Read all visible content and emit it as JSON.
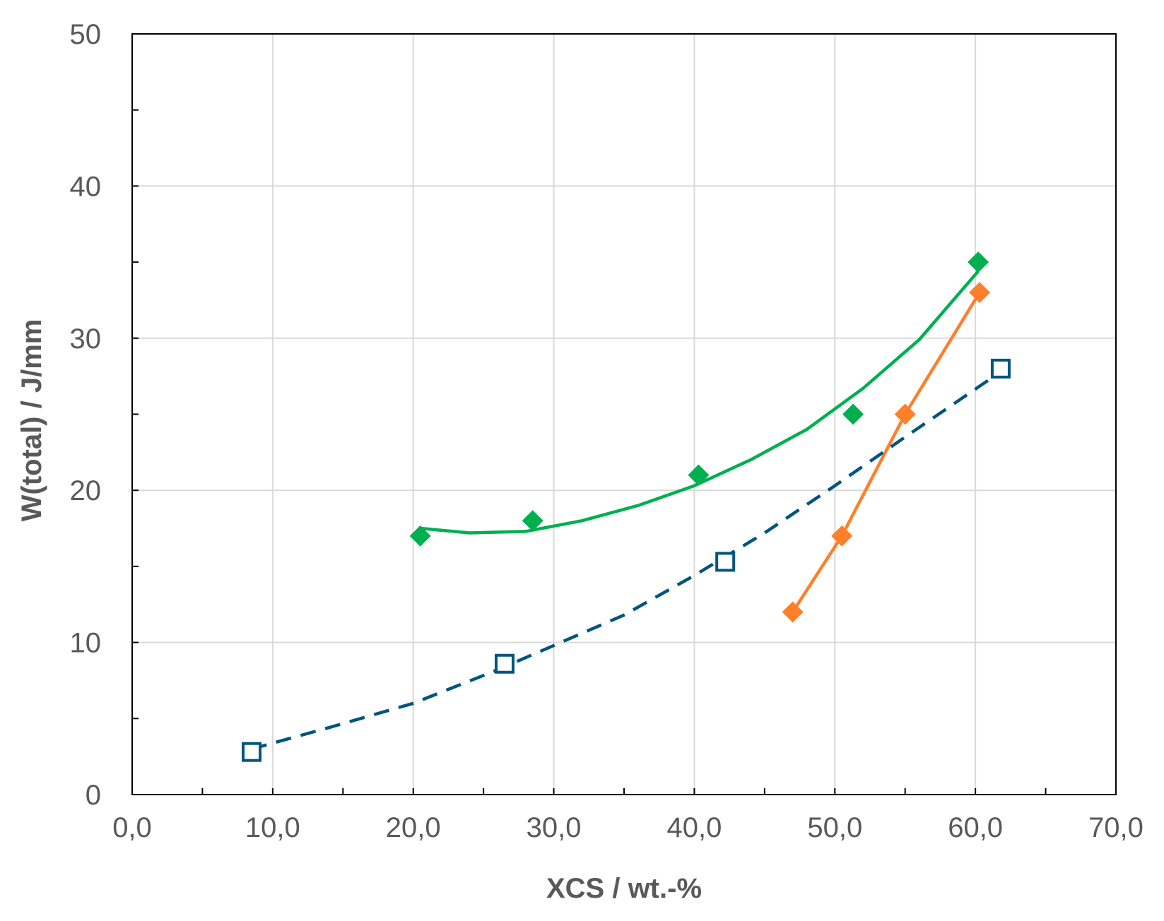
{
  "chart_data": {
    "type": "scatter",
    "title": "",
    "xlabel": "XCS / wt.-%",
    "ylabel": "W(total) / J/mm",
    "xlim": [
      0,
      70
    ],
    "ylim": [
      0,
      50
    ],
    "x_ticks": [
      "0,0",
      "10,0",
      "20,0",
      "30,0",
      "40,0",
      "50,0",
      "60,0",
      "70,0"
    ],
    "y_ticks": [
      "0",
      "10",
      "20",
      "30",
      "40",
      "50"
    ],
    "grid": true,
    "legend": "none",
    "series": [
      {
        "color": "#00b050",
        "marker": "filled-diamond",
        "points": [
          {
            "x": 20.5,
            "y": 17
          },
          {
            "x": 28.5,
            "y": 18
          },
          {
            "x": 40.3,
            "y": 21
          },
          {
            "x": 51.3,
            "y": 25
          },
          {
            "x": 60.2,
            "y": 35
          }
        ],
        "trendline": {
          "style": "solid",
          "points": [
            {
              "x": 20.5,
              "y": 17.5
            },
            {
              "x": 24.0,
              "y": 17.2
            },
            {
              "x": 28.0,
              "y": 17.3
            },
            {
              "x": 32.0,
              "y": 18.0
            },
            {
              "x": 36.0,
              "y": 19.0
            },
            {
              "x": 40.0,
              "y": 20.3
            },
            {
              "x": 44.0,
              "y": 22.0
            },
            {
              "x": 48.0,
              "y": 24.0
            },
            {
              "x": 52.0,
              "y": 26.7
            },
            {
              "x": 56.0,
              "y": 29.9
            },
            {
              "x": 60.2,
              "y": 34.4
            }
          ]
        }
      },
      {
        "color": "#ff7f2a",
        "marker": "filled-diamond",
        "points": [
          {
            "x": 47.0,
            "y": 12
          },
          {
            "x": 50.5,
            "y": 17
          },
          {
            "x": 55.0,
            "y": 25
          },
          {
            "x": 60.3,
            "y": 33
          }
        ],
        "trendline": {
          "style": "solid-connect",
          "points": [
            {
              "x": 47.0,
              "y": 12
            },
            {
              "x": 50.5,
              "y": 17
            },
            {
              "x": 55.0,
              "y": 25
            },
            {
              "x": 60.3,
              "y": 33
            }
          ]
        }
      },
      {
        "color": "#00557f",
        "marker": "open-square",
        "points": [
          {
            "x": 8.5,
            "y": 2.8
          },
          {
            "x": 26.5,
            "y": 8.6
          },
          {
            "x": 42.2,
            "y": 15.3
          },
          {
            "x": 61.8,
            "y": 28
          }
        ],
        "trendline": {
          "style": "dashed",
          "points": [
            {
              "x": 8.5,
              "y": 3.0
            },
            {
              "x": 14.0,
              "y": 4.4
            },
            {
              "x": 20.0,
              "y": 6.0
            },
            {
              "x": 26.0,
              "y": 8.2
            },
            {
              "x": 30.0,
              "y": 9.8
            },
            {
              "x": 35.0,
              "y": 11.8
            },
            {
              "x": 40.0,
              "y": 14.4
            },
            {
              "x": 45.0,
              "y": 17.2
            },
            {
              "x": 50.0,
              "y": 20.3
            },
            {
              "x": 55.0,
              "y": 23.5
            },
            {
              "x": 61.5,
              "y": 27.6
            }
          ]
        }
      }
    ]
  }
}
